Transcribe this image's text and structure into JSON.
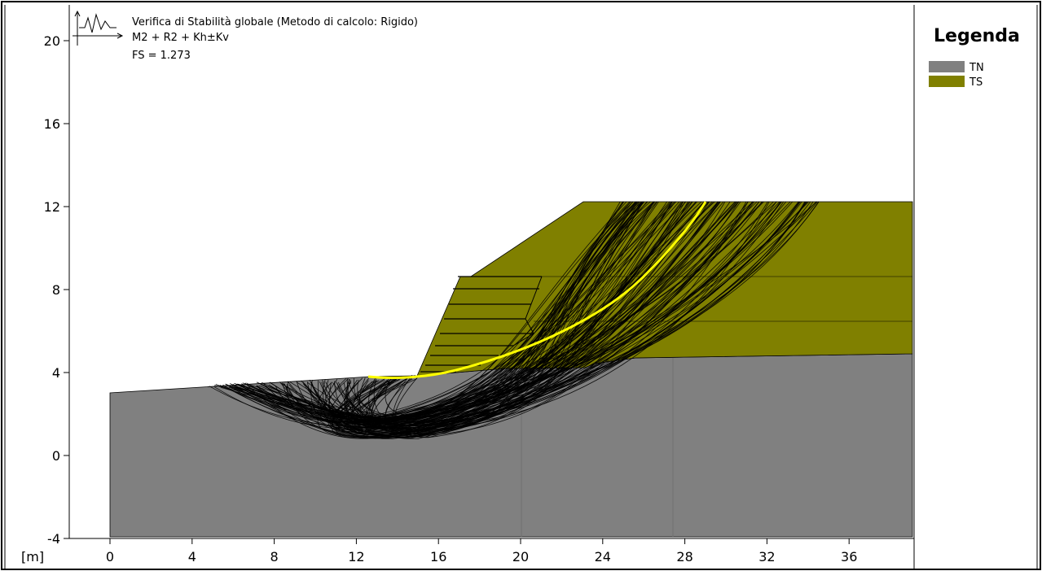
{
  "header": {
    "title": "Verifica di Stabilità globale (Metodo di calcolo: Rigido)",
    "combination": "M2 + R2 + Kh±Kv",
    "safety_factor": "FS = 1.273"
  },
  "axes": {
    "unit_label": "[m]",
    "x_ticks": [
      "0",
      "4",
      "8",
      "12",
      "16",
      "20",
      "24",
      "28",
      "32",
      "36"
    ],
    "y_ticks": [
      "20",
      "16",
      "12",
      "8",
      "4",
      "0",
      "-4"
    ]
  },
  "legend": {
    "title": "Legenda",
    "items": [
      {
        "label": "TN",
        "color": "#808080"
      },
      {
        "label": "TS",
        "color": "#808000"
      }
    ]
  },
  "colors": {
    "critical_surface": "#ffff00",
    "slip_surfaces": "#000000"
  }
}
